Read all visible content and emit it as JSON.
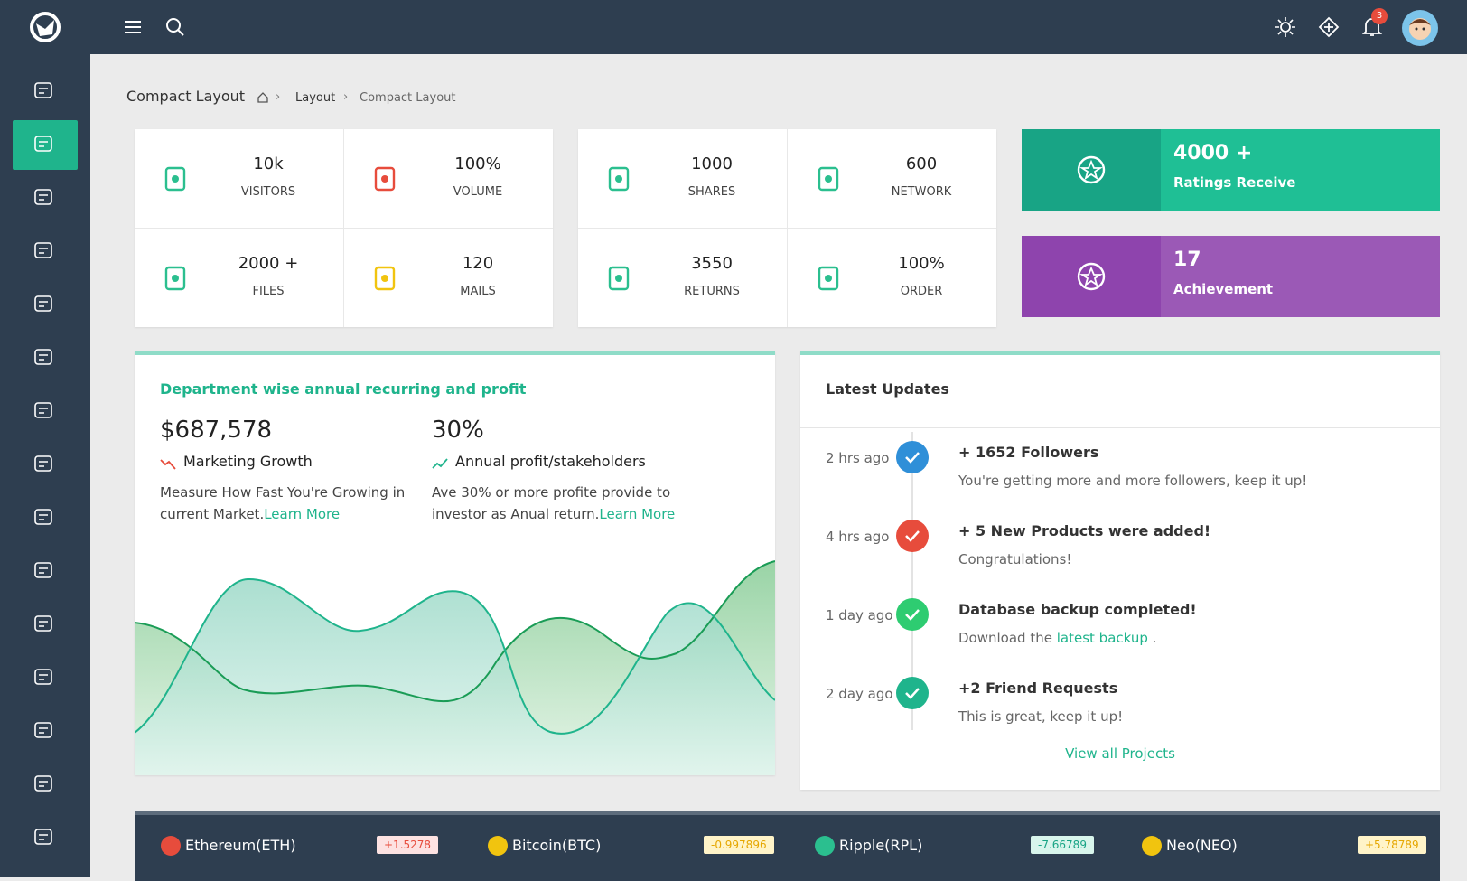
{
  "header": {
    "notifications": "3"
  },
  "breadcrumb": {
    "title": "Compact Layout",
    "items": [
      "Layout",
      "Compact Layout"
    ]
  },
  "stats": [
    [
      {
        "value": "10k",
        "label": "VISITORS"
      },
      {
        "value": "100%",
        "label": "VOLUME"
      },
      {
        "value": "2000 +",
        "label": "FILES"
      },
      {
        "value": "120",
        "label": "MAILS"
      }
    ],
    [
      {
        "value": "1000",
        "label": "SHARES"
      },
      {
        "value": "600",
        "label": "NETWORK"
      },
      {
        "value": "3550",
        "label": "RETURNS"
      },
      {
        "value": "100%",
        "label": "ORDER"
      }
    ]
  ],
  "highlights": [
    {
      "value": "4000 +",
      "label": "Ratings Receive"
    },
    {
      "value": "17",
      "label": "Achievement"
    }
  ],
  "department": {
    "title": "Department wise annual recurring and profit",
    "metrics": [
      {
        "value": "$687,578",
        "label": "Marketing Growth",
        "text": "Measure How Fast You're Growing in current Market.",
        "link": "Learn More"
      },
      {
        "value": "30%",
        "label": "Annual profit/stakeholders",
        "text": "Ave 30% or more profite provide to investor as Anual return.",
        "link": "Learn More"
      }
    ]
  },
  "updates": {
    "title": "Latest Updates",
    "items": [
      {
        "time": "2 hrs ago",
        "title": "+ 1652 Followers",
        "text": "You're getting more and more followers, keep it up!"
      },
      {
        "time": "4 hrs ago",
        "title": "+ 5 New Products were added!",
        "text": "Congratulations!"
      },
      {
        "time": "1 day ago",
        "title": "Database backup completed!",
        "text": "Download the",
        "link": "latest backup",
        "text_after": "."
      },
      {
        "time": "2 day ago",
        "title": "+2 Friend Requests",
        "text": "This is great, keep it up!"
      }
    ],
    "footer_link": "View all Projects"
  },
  "ticker": [
    {
      "name": "Ethereum(ETH)",
      "change": "+1.5278"
    },
    {
      "name": "Bitcoin(BTC)",
      "change": "-0.997896"
    },
    {
      "name": "Ripple(RPL)",
      "change": "-7.66789"
    },
    {
      "name": "Neo(NEO)",
      "change": "+5.78789"
    }
  ]
}
